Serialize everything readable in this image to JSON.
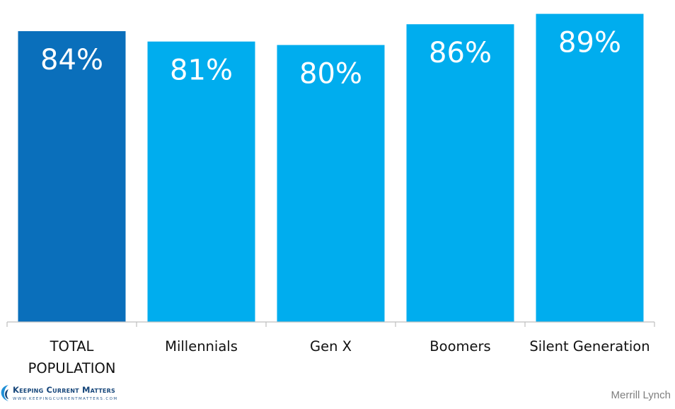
{
  "chart_data": {
    "type": "bar",
    "categories": [
      "TOTAL\nPOPULATION",
      "Millennials",
      "Gen X",
      "Boomers",
      "Silent Generation"
    ],
    "values": [
      84,
      81,
      80,
      86,
      89
    ],
    "data_labels": [
      "84%",
      "81%",
      "80%",
      "86%",
      "89%"
    ],
    "colors": [
      "#0a6fbb",
      "#00adee",
      "#00adee",
      "#00adee",
      "#00adee"
    ],
    "title": "",
    "xlabel": "",
    "ylabel": "",
    "ylim": [
      0,
      90
    ],
    "grid": false,
    "legend": "none"
  },
  "footer": {
    "logo_text": "Keeping Current Matters",
    "logo_url": "WWW.KEEPINGCURRENTMATTERS.COM",
    "source": "Merrill Lynch"
  }
}
